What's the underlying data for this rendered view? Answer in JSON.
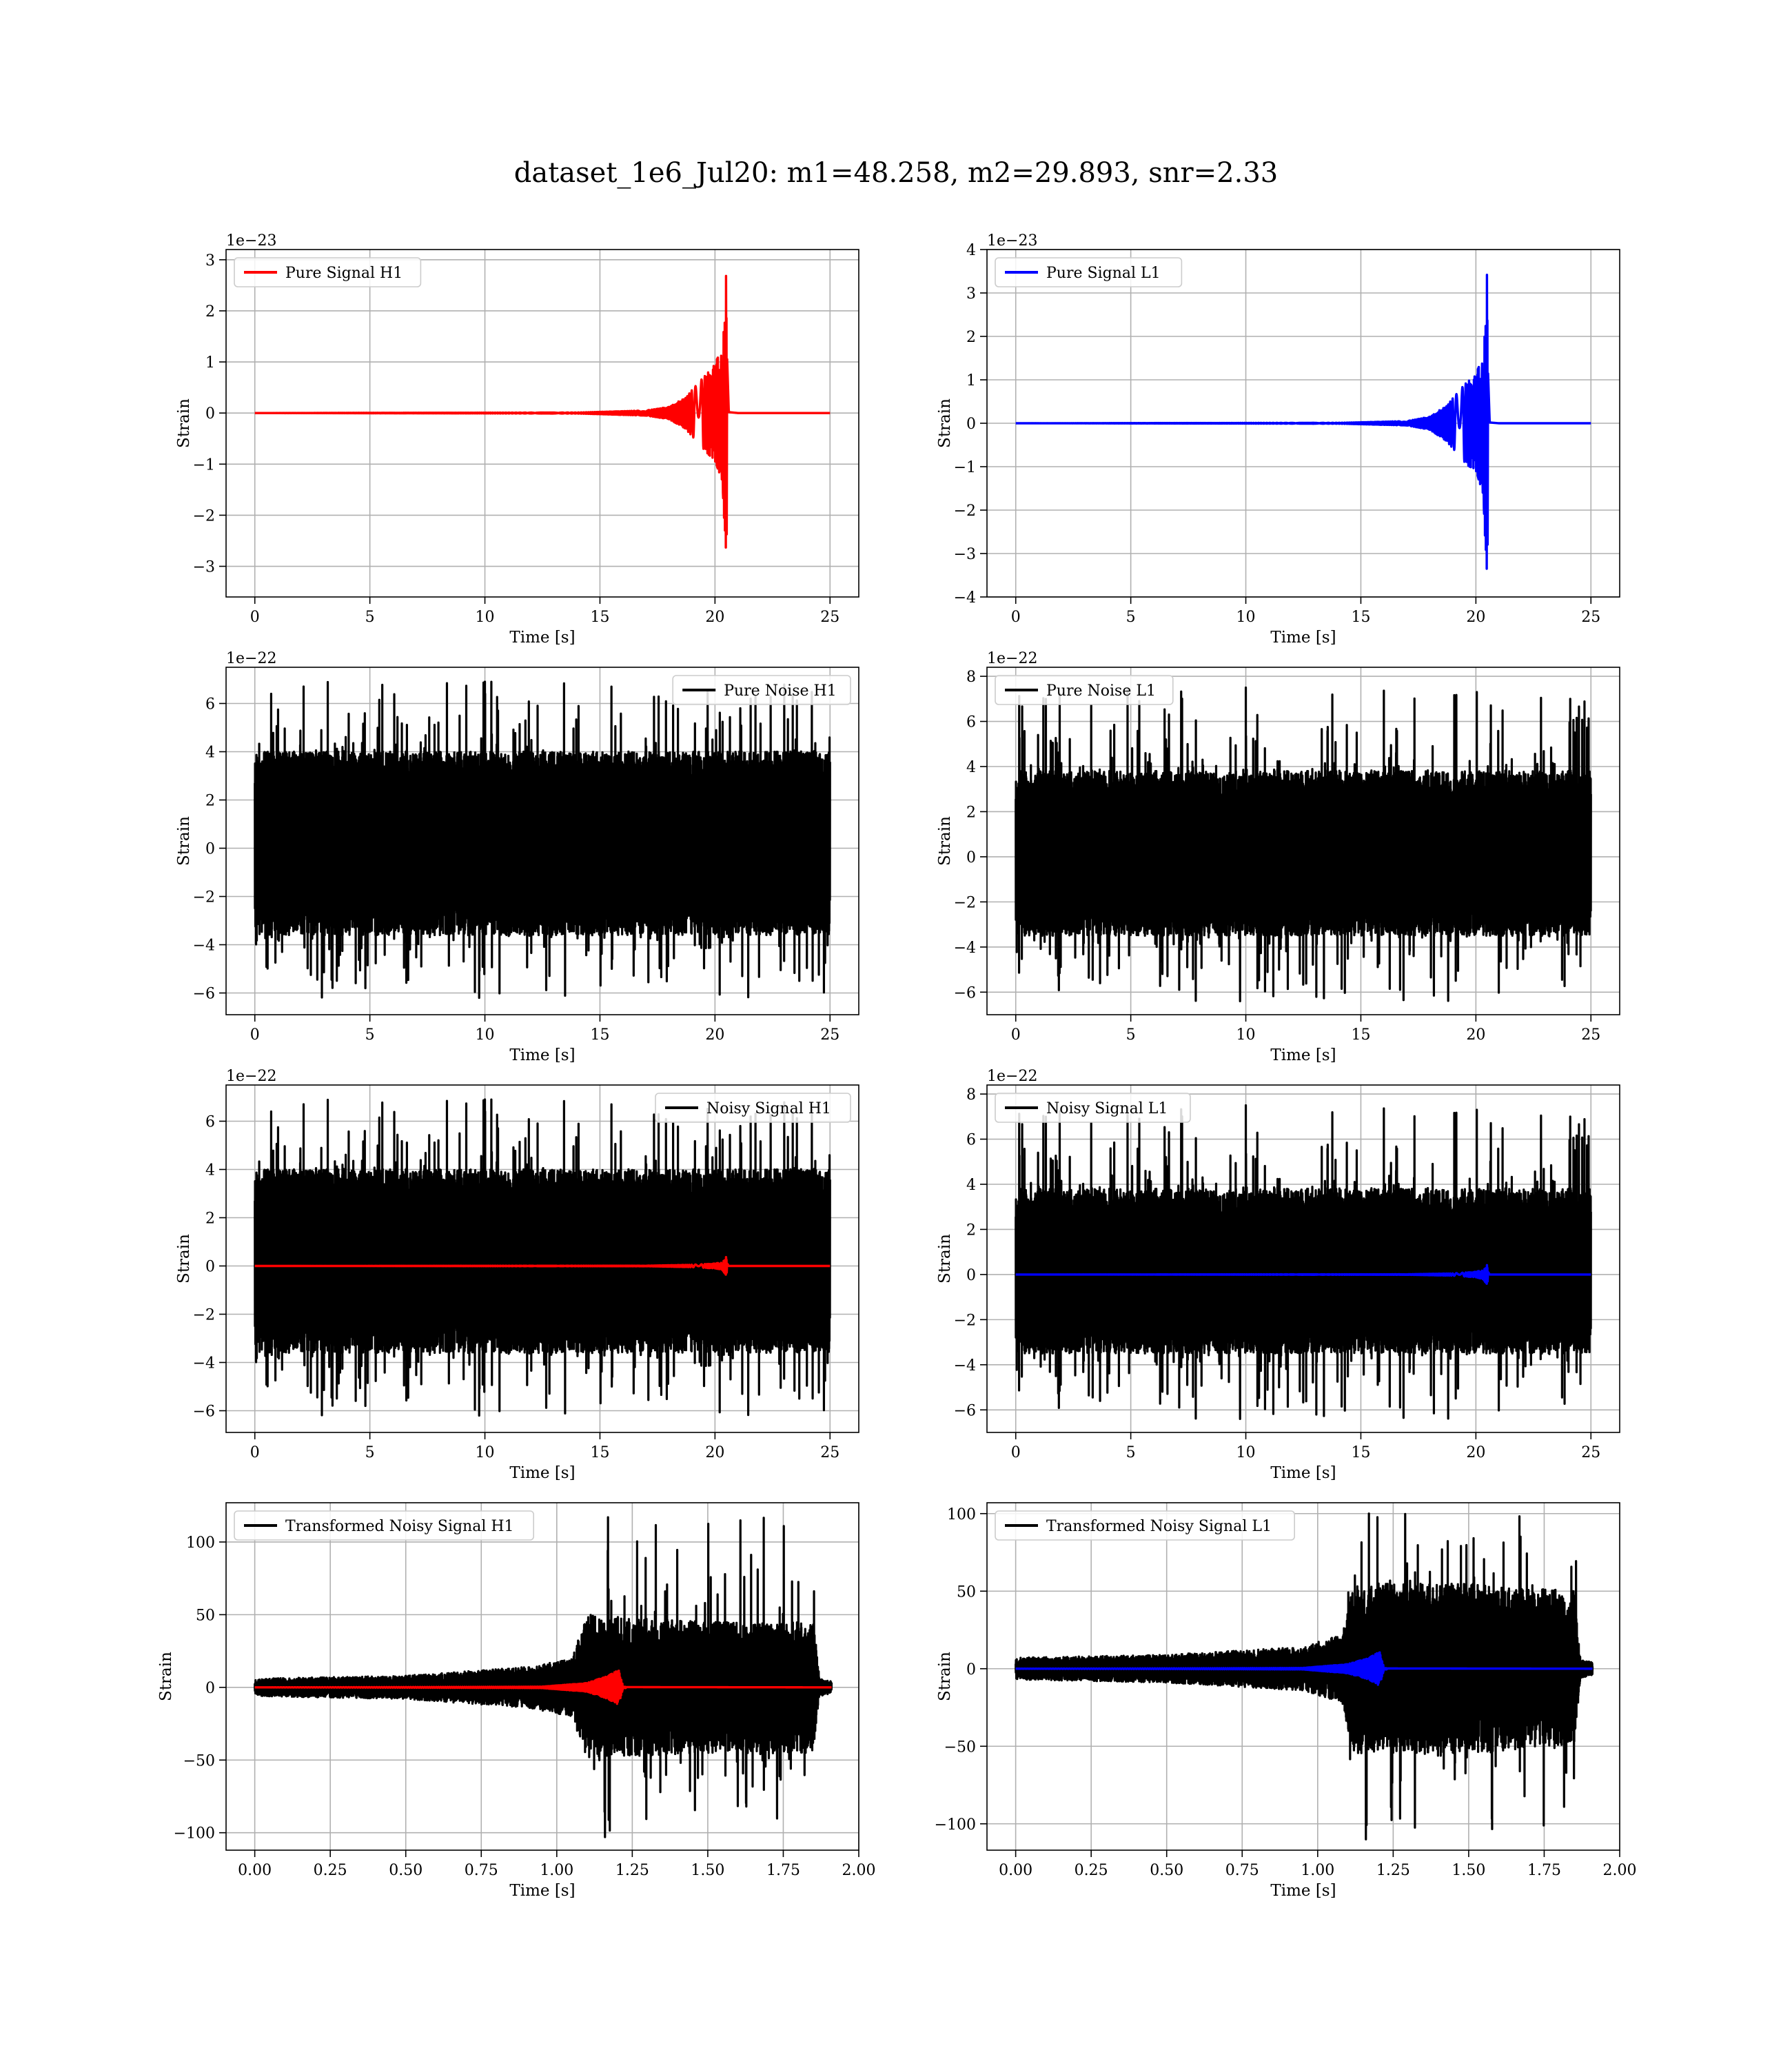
{
  "figure": {
    "title": "dataset_1e6_Jul20: m1=48.258, m2=29.893, snr=2.33"
  },
  "chart_data": [
    {
      "type": "line",
      "panel": "pure-signal-h1",
      "title": "",
      "xlabel": "Time [s]",
      "ylabel": "Strain",
      "offset_text": "1e−23",
      "xlim": [
        -1.25,
        26.25
      ],
      "ylim": [
        -3.6,
        3.2
      ],
      "xticks": [
        0,
        5,
        10,
        15,
        20,
        25
      ],
      "xtick_labels": [
        "0",
        "5",
        "10",
        "15",
        "20",
        "25"
      ],
      "yticks": [
        -3,
        -2,
        -1,
        0,
        1,
        2,
        3
      ],
      "ytick_labels": [
        "−3",
        "−2",
        "−1",
        "0",
        "1",
        "2",
        "3"
      ],
      "grid": true,
      "legend_position": "upper-left",
      "series": [
        {
          "name": "Pure Signal H1",
          "color": "#ff0000",
          "kind": "chirp",
          "x_start": 0,
          "x_end": 25,
          "merger_time": 20.5,
          "envelope": [
            [
              0,
              0
            ],
            [
              14,
              0.01
            ],
            [
              17,
              0.05
            ],
            [
              18,
              0.12
            ],
            [
              18.7,
              0.3
            ],
            [
              19.2,
              0.55
            ],
            [
              19.6,
              0.75
            ],
            [
              20.0,
              0.95
            ],
            [
              20.3,
              1.3
            ],
            [
              20.5,
              2.9
            ],
            [
              20.52,
              3.4
            ],
            [
              20.6,
              0.05
            ],
            [
              21,
              0
            ],
            [
              25,
              0
            ]
          ]
        }
      ]
    },
    {
      "type": "line",
      "panel": "pure-signal-l1",
      "title": "",
      "xlabel": "Time [s]",
      "ylabel": "Strain",
      "offset_text": "1e−23",
      "xlim": [
        -1.25,
        26.25
      ],
      "ylim": [
        -4.0,
        4.0
      ],
      "xticks": [
        0,
        5,
        10,
        15,
        20,
        25
      ],
      "xtick_labels": [
        "0",
        "5",
        "10",
        "15",
        "20",
        "25"
      ],
      "yticks": [
        -4,
        -3,
        -2,
        -1,
        0,
        1,
        2,
        3,
        4
      ],
      "ytick_labels": [
        "−4",
        "−3",
        "−2",
        "−1",
        "0",
        "1",
        "2",
        "3",
        "4"
      ],
      "grid": true,
      "legend_position": "upper-left",
      "series": [
        {
          "name": "Pure Signal L1",
          "color": "#0000ff",
          "kind": "chirp",
          "x_start": 0,
          "x_end": 25,
          "merger_time": 20.5,
          "envelope": [
            [
              0,
              0
            ],
            [
              14,
              0.01
            ],
            [
              17,
              0.05
            ],
            [
              18,
              0.15
            ],
            [
              18.7,
              0.4
            ],
            [
              19.2,
              0.7
            ],
            [
              19.6,
              0.95
            ],
            [
              20.0,
              1.1
            ],
            [
              20.3,
              1.6
            ],
            [
              20.5,
              3.7
            ],
            [
              20.52,
              3.7
            ],
            [
              20.6,
              0.05
            ],
            [
              21,
              0
            ],
            [
              25,
              0
            ]
          ]
        }
      ]
    },
    {
      "type": "line",
      "panel": "pure-noise-h1",
      "title": "",
      "xlabel": "Time [s]",
      "ylabel": "Strain",
      "offset_text": "1e−22",
      "xlim": [
        -1.25,
        26.25
      ],
      "ylim": [
        -6.9,
        7.5
      ],
      "xticks": [
        0,
        5,
        10,
        15,
        20,
        25
      ],
      "xtick_labels": [
        "0",
        "5",
        "10",
        "15",
        "20",
        "25"
      ],
      "yticks": [
        -6,
        -4,
        -2,
        0,
        2,
        4,
        6
      ],
      "ytick_labels": [
        "−6",
        "−4",
        "−2",
        "0",
        "2",
        "4",
        "6"
      ],
      "grid": true,
      "legend_position": "upper-right",
      "series": [
        {
          "name": "Pure Noise H1",
          "color": "#000000",
          "kind": "noise",
          "x_start": 0,
          "x_end": 25,
          "band": [
            -3.6,
            4.0
          ],
          "peak_max": 6.9,
          "peak_min": -6.2,
          "seed": 11
        }
      ]
    },
    {
      "type": "line",
      "panel": "pure-noise-l1",
      "title": "",
      "xlabel": "Time [s]",
      "ylabel": "Strain",
      "offset_text": "1e−22",
      "xlim": [
        -1.25,
        26.25
      ],
      "ylim": [
        -7.0,
        8.4
      ],
      "xticks": [
        0,
        5,
        10,
        15,
        20,
        25
      ],
      "xtick_labels": [
        "0",
        "5",
        "10",
        "15",
        "20",
        "25"
      ],
      "yticks": [
        -6,
        -4,
        -2,
        0,
        2,
        4,
        6,
        8
      ],
      "ytick_labels": [
        "−6",
        "−4",
        "−2",
        "0",
        "2",
        "4",
        "6",
        "8"
      ],
      "grid": true,
      "legend_position": "upper-left",
      "series": [
        {
          "name": "Pure Noise L1",
          "color": "#000000",
          "kind": "noise",
          "x_start": 0,
          "x_end": 25,
          "band": [
            -3.5,
            3.8
          ],
          "peak_max": 7.5,
          "peak_min": -6.4,
          "seed": 23
        }
      ]
    },
    {
      "type": "line",
      "panel": "noisy-signal-h1",
      "title": "",
      "xlabel": "Time [s]",
      "ylabel": "Strain",
      "offset_text": "1e−22",
      "xlim": [
        -1.25,
        26.25
      ],
      "ylim": [
        -6.9,
        7.5
      ],
      "xticks": [
        0,
        5,
        10,
        15,
        20,
        25
      ],
      "xtick_labels": [
        "0",
        "5",
        "10",
        "15",
        "20",
        "25"
      ],
      "yticks": [
        -6,
        -4,
        -2,
        0,
        2,
        4,
        6
      ],
      "ytick_labels": [
        "−6",
        "−4",
        "−2",
        "0",
        "2",
        "4",
        "6"
      ],
      "grid": true,
      "legend_position": "upper-right",
      "series": [
        {
          "name": "Noisy Signal H1",
          "color": "#000000",
          "kind": "noise",
          "x_start": 0,
          "x_end": 25,
          "band": [
            -3.6,
            4.0
          ],
          "peak_max": 6.9,
          "peak_min": -6.2,
          "seed": 11
        },
        {
          "color": "#ff0000",
          "kind": "chirp",
          "x_start": 0,
          "x_end": 25,
          "merger_time": 20.5,
          "envelope": [
            [
              0,
              0
            ],
            [
              17,
              0.01
            ],
            [
              19,
              0.05
            ],
            [
              20.0,
              0.1
            ],
            [
              20.3,
              0.15
            ],
            [
              20.5,
              0.4
            ],
            [
              20.6,
              0
            ],
            [
              25,
              0
            ]
          ]
        }
      ]
    },
    {
      "type": "line",
      "panel": "noisy-signal-l1",
      "title": "",
      "xlabel": "Time [s]",
      "ylabel": "Strain",
      "offset_text": "1e−22",
      "xlim": [
        -1.25,
        26.25
      ],
      "ylim": [
        -7.0,
        8.4
      ],
      "xticks": [
        0,
        5,
        10,
        15,
        20,
        25
      ],
      "xtick_labels": [
        "0",
        "5",
        "10",
        "15",
        "20",
        "25"
      ],
      "yticks": [
        -6,
        -4,
        -2,
        0,
        2,
        4,
        6,
        8
      ],
      "ytick_labels": [
        "−6",
        "−4",
        "−2",
        "0",
        "2",
        "4",
        "6",
        "8"
      ],
      "grid": true,
      "legend_position": "upper-left",
      "series": [
        {
          "name": "Noisy Signal L1",
          "color": "#000000",
          "kind": "noise",
          "x_start": 0,
          "x_end": 25,
          "band": [
            -3.5,
            3.8
          ],
          "peak_max": 7.5,
          "peak_min": -6.4,
          "seed": 23
        },
        {
          "color": "#0000ff",
          "kind": "chirp",
          "x_start": 0,
          "x_end": 25,
          "merger_time": 20.5,
          "envelope": [
            [
              0,
              0
            ],
            [
              17,
              0.01
            ],
            [
              19,
              0.05
            ],
            [
              20.0,
              0.12
            ],
            [
              20.3,
              0.2
            ],
            [
              20.5,
              0.45
            ],
            [
              20.6,
              0
            ],
            [
              25,
              0
            ]
          ]
        }
      ]
    },
    {
      "type": "line",
      "panel": "transformed-noisy-signal-h1",
      "title": "",
      "xlabel": "Time [s]",
      "ylabel": "Strain",
      "offset_text": "",
      "xlim": [
        -0.095,
        2.0
      ],
      "ylim": [
        -112,
        127
      ],
      "xticks": [
        0.0,
        0.25,
        0.5,
        0.75,
        1.0,
        1.25,
        1.5,
        1.75,
        2.0
      ],
      "xtick_labels": [
        "0.00",
        "0.25",
        "0.50",
        "0.75",
        "1.00",
        "1.25",
        "1.50",
        "1.75",
        "2.00"
      ],
      "yticks": [
        -100,
        -50,
        0,
        50,
        100
      ],
      "ytick_labels": [
        "−100",
        "−50",
        "0",
        "50",
        "100"
      ],
      "grid": true,
      "legend_position": "upper-left",
      "series": [
        {
          "name": "Transformed Noisy Signal H1",
          "color": "#000000",
          "kind": "whitened",
          "x_start": 0,
          "x_end": 1.91,
          "envelope": [
            [
              0,
              6
            ],
            [
              0.5,
              8
            ],
            [
              0.9,
              14
            ],
            [
              1.05,
              20
            ],
            [
              1.1,
              50
            ],
            [
              1.5,
              45
            ],
            [
              1.85,
              45
            ],
            [
              1.87,
              6
            ],
            [
              1.91,
              4
            ]
          ],
          "peak_max": 117,
          "peak_min": -103,
          "seed": 37
        },
        {
          "color": "#ff0000",
          "kind": "chirp",
          "x_start": 0,
          "x_end": 1.91,
          "merger_time": 1.21,
          "envelope": [
            [
              0,
              0
            ],
            [
              0.95,
              0.5
            ],
            [
              1.1,
              3
            ],
            [
              1.17,
              8
            ],
            [
              1.205,
              12
            ],
            [
              1.22,
              0.5
            ],
            [
              1.91,
              0
            ]
          ]
        }
      ]
    },
    {
      "type": "line",
      "panel": "transformed-noisy-signal-l1",
      "title": "",
      "xlabel": "Time [s]",
      "ylabel": "Strain",
      "offset_text": "",
      "xlim": [
        -0.095,
        2.0
      ],
      "ylim": [
        -117,
        107
      ],
      "xticks": [
        0.0,
        0.25,
        0.5,
        0.75,
        1.0,
        1.25,
        1.5,
        1.75,
        2.0
      ],
      "xtick_labels": [
        "0.00",
        "0.25",
        "0.50",
        "0.75",
        "1.00",
        "1.25",
        "1.50",
        "1.75",
        "2.00"
      ],
      "yticks": [
        -100,
        -50,
        0,
        50,
        100
      ],
      "ytick_labels": [
        "−100",
        "−50",
        "0",
        "50",
        "100"
      ],
      "grid": true,
      "legend_position": "upper-left",
      "series": [
        {
          "name": "Transformed Noisy Signal L1",
          "color": "#000000",
          "kind": "whitened",
          "x_start": 0,
          "x_end": 1.91,
          "envelope": [
            [
              0,
              7
            ],
            [
              0.5,
              9
            ],
            [
              0.95,
              14
            ],
            [
              1.08,
              22
            ],
            [
              1.12,
              55
            ],
            [
              1.5,
              55
            ],
            [
              1.85,
              50
            ],
            [
              1.87,
              6
            ],
            [
              1.91,
              4
            ]
          ],
          "peak_max": 100,
          "peak_min": -110,
          "seed": 53
        },
        {
          "color": "#0000ff",
          "kind": "chirp",
          "x_start": 0,
          "x_end": 1.91,
          "merger_time": 1.21,
          "envelope": [
            [
              0,
              0
            ],
            [
              0.95,
              0.5
            ],
            [
              1.1,
              3
            ],
            [
              1.17,
              7
            ],
            [
              1.205,
              11
            ],
            [
              1.22,
              0.5
            ],
            [
              1.91,
              0
            ]
          ]
        }
      ]
    }
  ]
}
